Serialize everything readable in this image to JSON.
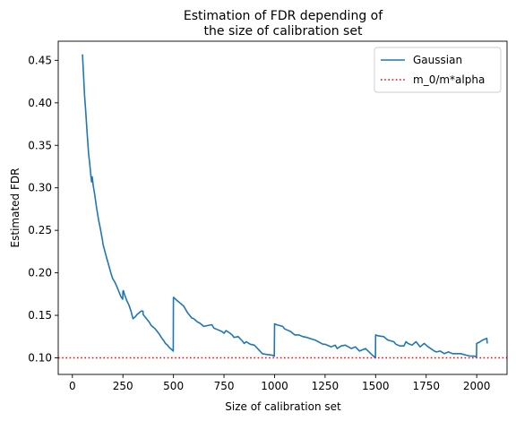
{
  "chart_data": {
    "type": "line",
    "title_lines": [
      "Estimation of FDR depending of",
      "the size of calibration set"
    ],
    "xlabel": "Size of calibration set",
    "ylabel": "Estimated FDR",
    "xlim": [
      -70,
      2150
    ],
    "ylim": [
      0.0805,
      0.4725
    ],
    "xticks": [
      0,
      250,
      500,
      750,
      1000,
      1250,
      1500,
      1750,
      2000
    ],
    "yticks": [
      0.1,
      0.15,
      0.2,
      0.25,
      0.3,
      0.35,
      0.4,
      0.45
    ],
    "ytick_labels": [
      "0.10",
      "0.15",
      "0.20",
      "0.25",
      "0.30",
      "0.35",
      "0.40",
      "0.45"
    ],
    "grid": false,
    "legend_position": "top-right",
    "series": [
      {
        "name": "Gaussian",
        "color": "#1f77b4",
        "style": "solid",
        "x": [
          50,
          52,
          56,
          60,
          65,
          70,
          75,
          80,
          85,
          90,
          95,
          98,
          100,
          103,
          110,
          120,
          130,
          140,
          150,
          151,
          160,
          170,
          180,
          190,
          200,
          210,
          220,
          230,
          240,
          249,
          250,
          252,
          260,
          270,
          280,
          290,
          300,
          310,
          320,
          330,
          340,
          349,
          350,
          360,
          370,
          380,
          390,
          400,
          410,
          420,
          430,
          440,
          449,
          450,
          460,
          470,
          480,
          490,
          499,
          500,
          502,
          510,
          520,
          530,
          540,
          550,
          560,
          570,
          580,
          590,
          600,
          610,
          620,
          630,
          640,
          650,
          670,
          690,
          700,
          720,
          740,
          750,
          760,
          780,
          790,
          800,
          820,
          840,
          850,
          860,
          880,
          900,
          940,
          960,
          990,
          999,
          1000,
          1010,
          1040,
          1050,
          1060,
          1080,
          1100,
          1120,
          1140,
          1160,
          1200,
          1240,
          1250,
          1260,
          1280,
          1300,
          1310,
          1330,
          1350,
          1380,
          1400,
          1420,
          1450,
          1480,
          1499,
          1500,
          1510,
          1540,
          1550,
          1560,
          1590,
          1600,
          1620,
          1640,
          1650,
          1660,
          1680,
          1700,
          1720,
          1740,
          1750,
          1760,
          1790,
          1800,
          1820,
          1840,
          1860,
          1880,
          1900,
          1920,
          1950,
          1970,
          1990,
          1999,
          2000,
          2010,
          2030,
          2050,
          2052
        ],
        "y": [
          0.457,
          0.448,
          0.43,
          0.41,
          0.393,
          0.375,
          0.358,
          0.34,
          0.33,
          0.318,
          0.307,
          0.313,
          0.309,
          0.303,
          0.293,
          0.276,
          0.262,
          0.25,
          0.237,
          0.234,
          0.226,
          0.217,
          0.209,
          0.2,
          0.193,
          0.189,
          0.184,
          0.178,
          0.172,
          0.169,
          0.178,
          0.179,
          0.173,
          0.167,
          0.162,
          0.155,
          0.146,
          0.148,
          0.151,
          0.153,
          0.155,
          0.155,
          0.151,
          0.148,
          0.145,
          0.142,
          0.138,
          0.136,
          0.134,
          0.131,
          0.128,
          0.124,
          0.121,
          0.121,
          0.117,
          0.115,
          0.112,
          0.11,
          0.108,
          0.171,
          0.171,
          0.169,
          0.167,
          0.165,
          0.163,
          0.161,
          0.157,
          0.153,
          0.15,
          0.147,
          0.146,
          0.144,
          0.142,
          0.141,
          0.139,
          0.137,
          0.138,
          0.139,
          0.135,
          0.133,
          0.131,
          0.129,
          0.132,
          0.129,
          0.127,
          0.124,
          0.125,
          0.12,
          0.117,
          0.119,
          0.116,
          0.115,
          0.105,
          0.104,
          0.103,
          0.102,
          0.14,
          0.139,
          0.137,
          0.134,
          0.133,
          0.131,
          0.127,
          0.127,
          0.125,
          0.124,
          0.121,
          0.116,
          0.116,
          0.115,
          0.113,
          0.115,
          0.111,
          0.114,
          0.115,
          0.111,
          0.113,
          0.108,
          0.111,
          0.104,
          0.1,
          0.127,
          0.126,
          0.125,
          0.123,
          0.121,
          0.119,
          0.116,
          0.114,
          0.114,
          0.119,
          0.117,
          0.115,
          0.119,
          0.113,
          0.117,
          0.115,
          0.113,
          0.108,
          0.107,
          0.108,
          0.105,
          0.107,
          0.105,
          0.105,
          0.105,
          0.103,
          0.102,
          0.102,
          0.101,
          0.117,
          0.118,
          0.121,
          0.123,
          0.117
        ]
      },
      {
        "name": "m_0/m*alpha",
        "color": "#ff0000",
        "style": "dotted",
        "hline": 0.1
      }
    ]
  }
}
